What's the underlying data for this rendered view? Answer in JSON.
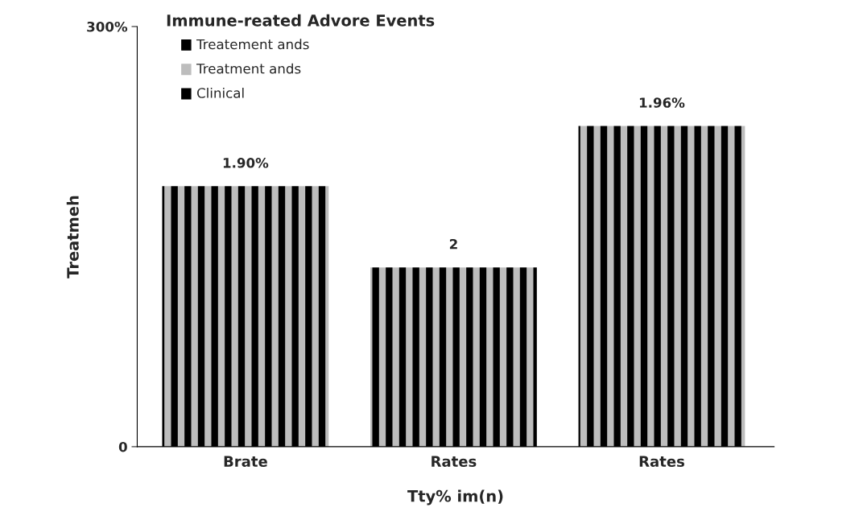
{
  "chart_data": {
    "type": "bar",
    "title": "Immune-reated Advore Events",
    "categories": [
      "Brate",
      "Rates",
      "Rates"
    ],
    "series": [
      {
        "color": "#000000",
        "values": [
          186,
          128,
          229
        ]
      }
    ],
    "annotations": [
      "Treatement ands",
      "Treatment ands",
      "Clinical",
      "1.90%",
      "2",
      "1.96%"
    ],
    "xlabel": "Tty% im(n)",
    "ylabel": "Treatmeh",
    "ylim": [
      0,
      300
    ],
    "yticks": [
      {
        "value": 0,
        "label": "0"
      },
      {
        "value": 300,
        "label": "300%"
      }
    ],
    "grid": false,
    "legend": false
  }
}
